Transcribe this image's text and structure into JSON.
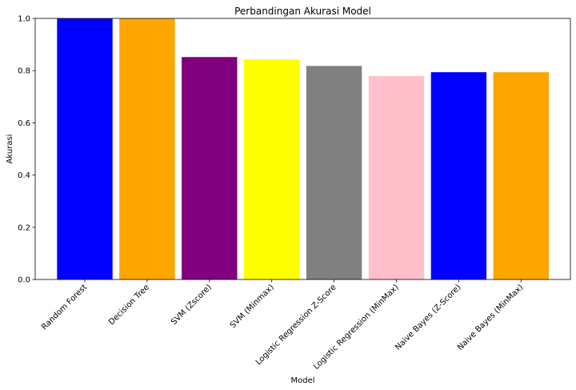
{
  "chart_data": {
    "type": "bar",
    "title": "Perbandingan Akurasi Model",
    "xlabel": "Model",
    "ylabel": "Akurasi",
    "categories": [
      "Random Forest",
      "Decision Tree",
      "SVM (Zscore)",
      "SVM (Minmax)",
      "Logistic Regression Z-Score",
      "Logistic Regression (MinMax)",
      "Naive Bayes (Z-Score)",
      "Naive Bayes (MinMax)"
    ],
    "values": [
      1.0,
      1.0,
      0.852,
      0.843,
      0.818,
      0.779,
      0.794,
      0.794
    ],
    "colors": [
      "#0000ff",
      "#ffa500",
      "#800080",
      "#ffff00",
      "#808080",
      "#ffc0cb",
      "#0000ff",
      "#ffa500"
    ],
    "ylim": [
      0,
      1.0
    ],
    "yticks": [
      "0.0",
      "0.2",
      "0.4",
      "0.6",
      "0.8",
      "1.0"
    ],
    "grid": false,
    "legend": "none"
  }
}
